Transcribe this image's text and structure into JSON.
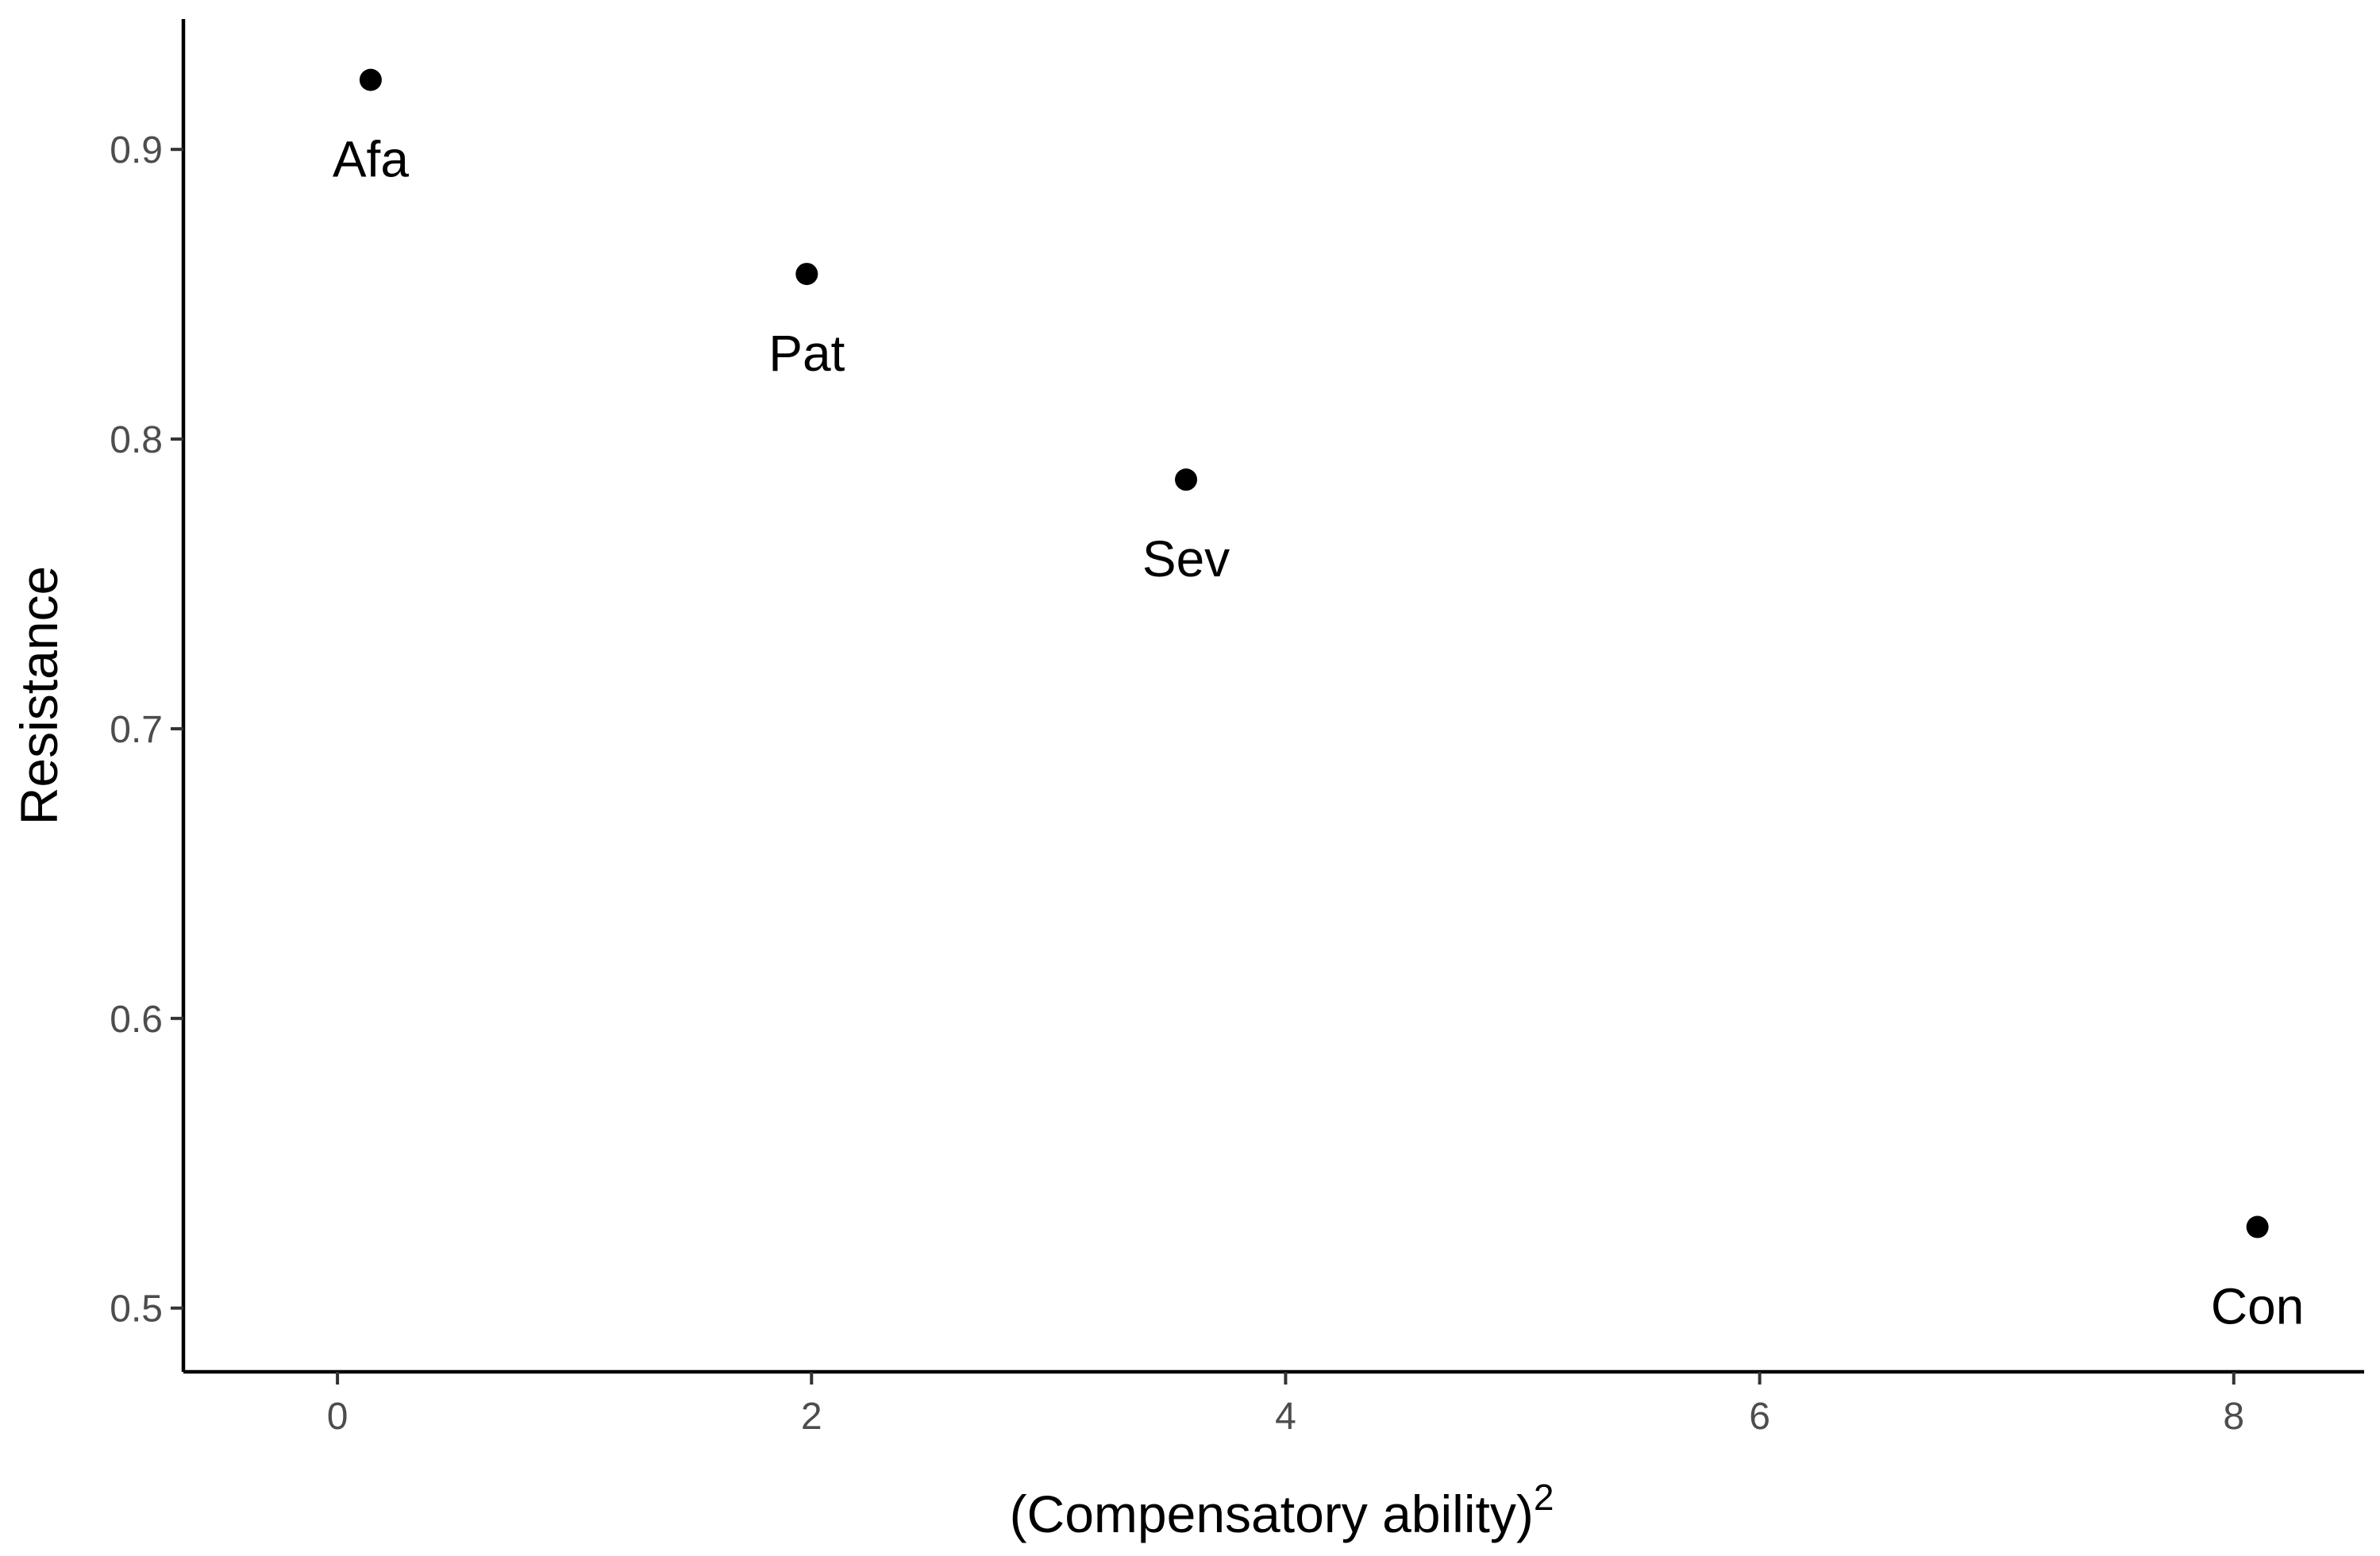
{
  "chart_data": {
    "type": "scatter",
    "title": "",
    "xlabel": "(Compensatory ability)",
    "xlabel_superscript": "2",
    "ylabel": "Resistance",
    "xlim": [
      -0.65,
      8.55
    ],
    "ylim": [
      0.478,
      0.945
    ],
    "x_ticks": [
      0,
      2,
      4,
      6,
      8
    ],
    "x_tick_labels": [
      "0",
      "2",
      "4",
      "6",
      "8"
    ],
    "y_ticks": [
      0.5,
      0.6,
      0.7,
      0.8,
      0.9
    ],
    "y_tick_labels": [
      "0.5",
      "0.6",
      "0.7",
      "0.8",
      "0.9"
    ],
    "grid": false,
    "legend": "none",
    "marker_color": "#000000",
    "points": [
      {
        "label": "Afa",
        "x": 0.14,
        "y": 0.924
      },
      {
        "label": "Pat",
        "x": 1.98,
        "y": 0.857
      },
      {
        "label": "Sev",
        "x": 3.58,
        "y": 0.786
      },
      {
        "label": "Con",
        "x": 8.1,
        "y": 0.528
      }
    ]
  }
}
